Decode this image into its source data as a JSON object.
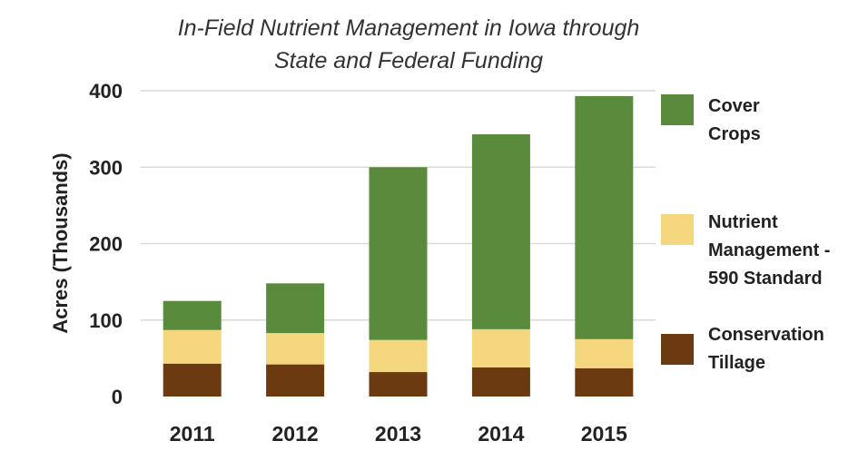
{
  "chart_data": {
    "type": "bar",
    "stacked": true,
    "title": "In-Field Nutrient Management in Iowa through",
    "subtitle": "State and Federal Funding",
    "xlabel": "",
    "ylabel": "Acres (Thousands)",
    "ylim": [
      0,
      400
    ],
    "yticks": [
      "0",
      "100",
      "200",
      "300",
      "400"
    ],
    "categories": [
      "2011",
      "2012",
      "2013",
      "2014",
      "2015"
    ],
    "grid": true,
    "legend_position": "right",
    "series": [
      {
        "name": "Conservation Tillage",
        "color": "#6b3a10",
        "values": [
          43,
          42,
          32,
          38,
          37
        ]
      },
      {
        "name": "Nutrient Management - 590 Standard",
        "color": "#f3d67e",
        "values": [
          44,
          41,
          42,
          50,
          38
        ]
      },
      {
        "name": "Cover Crops",
        "color": "#5a8a3c",
        "values": [
          38,
          65,
          226,
          255,
          318
        ]
      }
    ]
  },
  "legend": {
    "cover_crops_line1": "Cover",
    "cover_crops_line2": "Crops",
    "nutrient_line1": "Nutrient",
    "nutrient_line2": "Management -",
    "nutrient_line3": "590 Standard",
    "tillage_line1": "Conservation",
    "tillage_line2": "Tillage"
  }
}
